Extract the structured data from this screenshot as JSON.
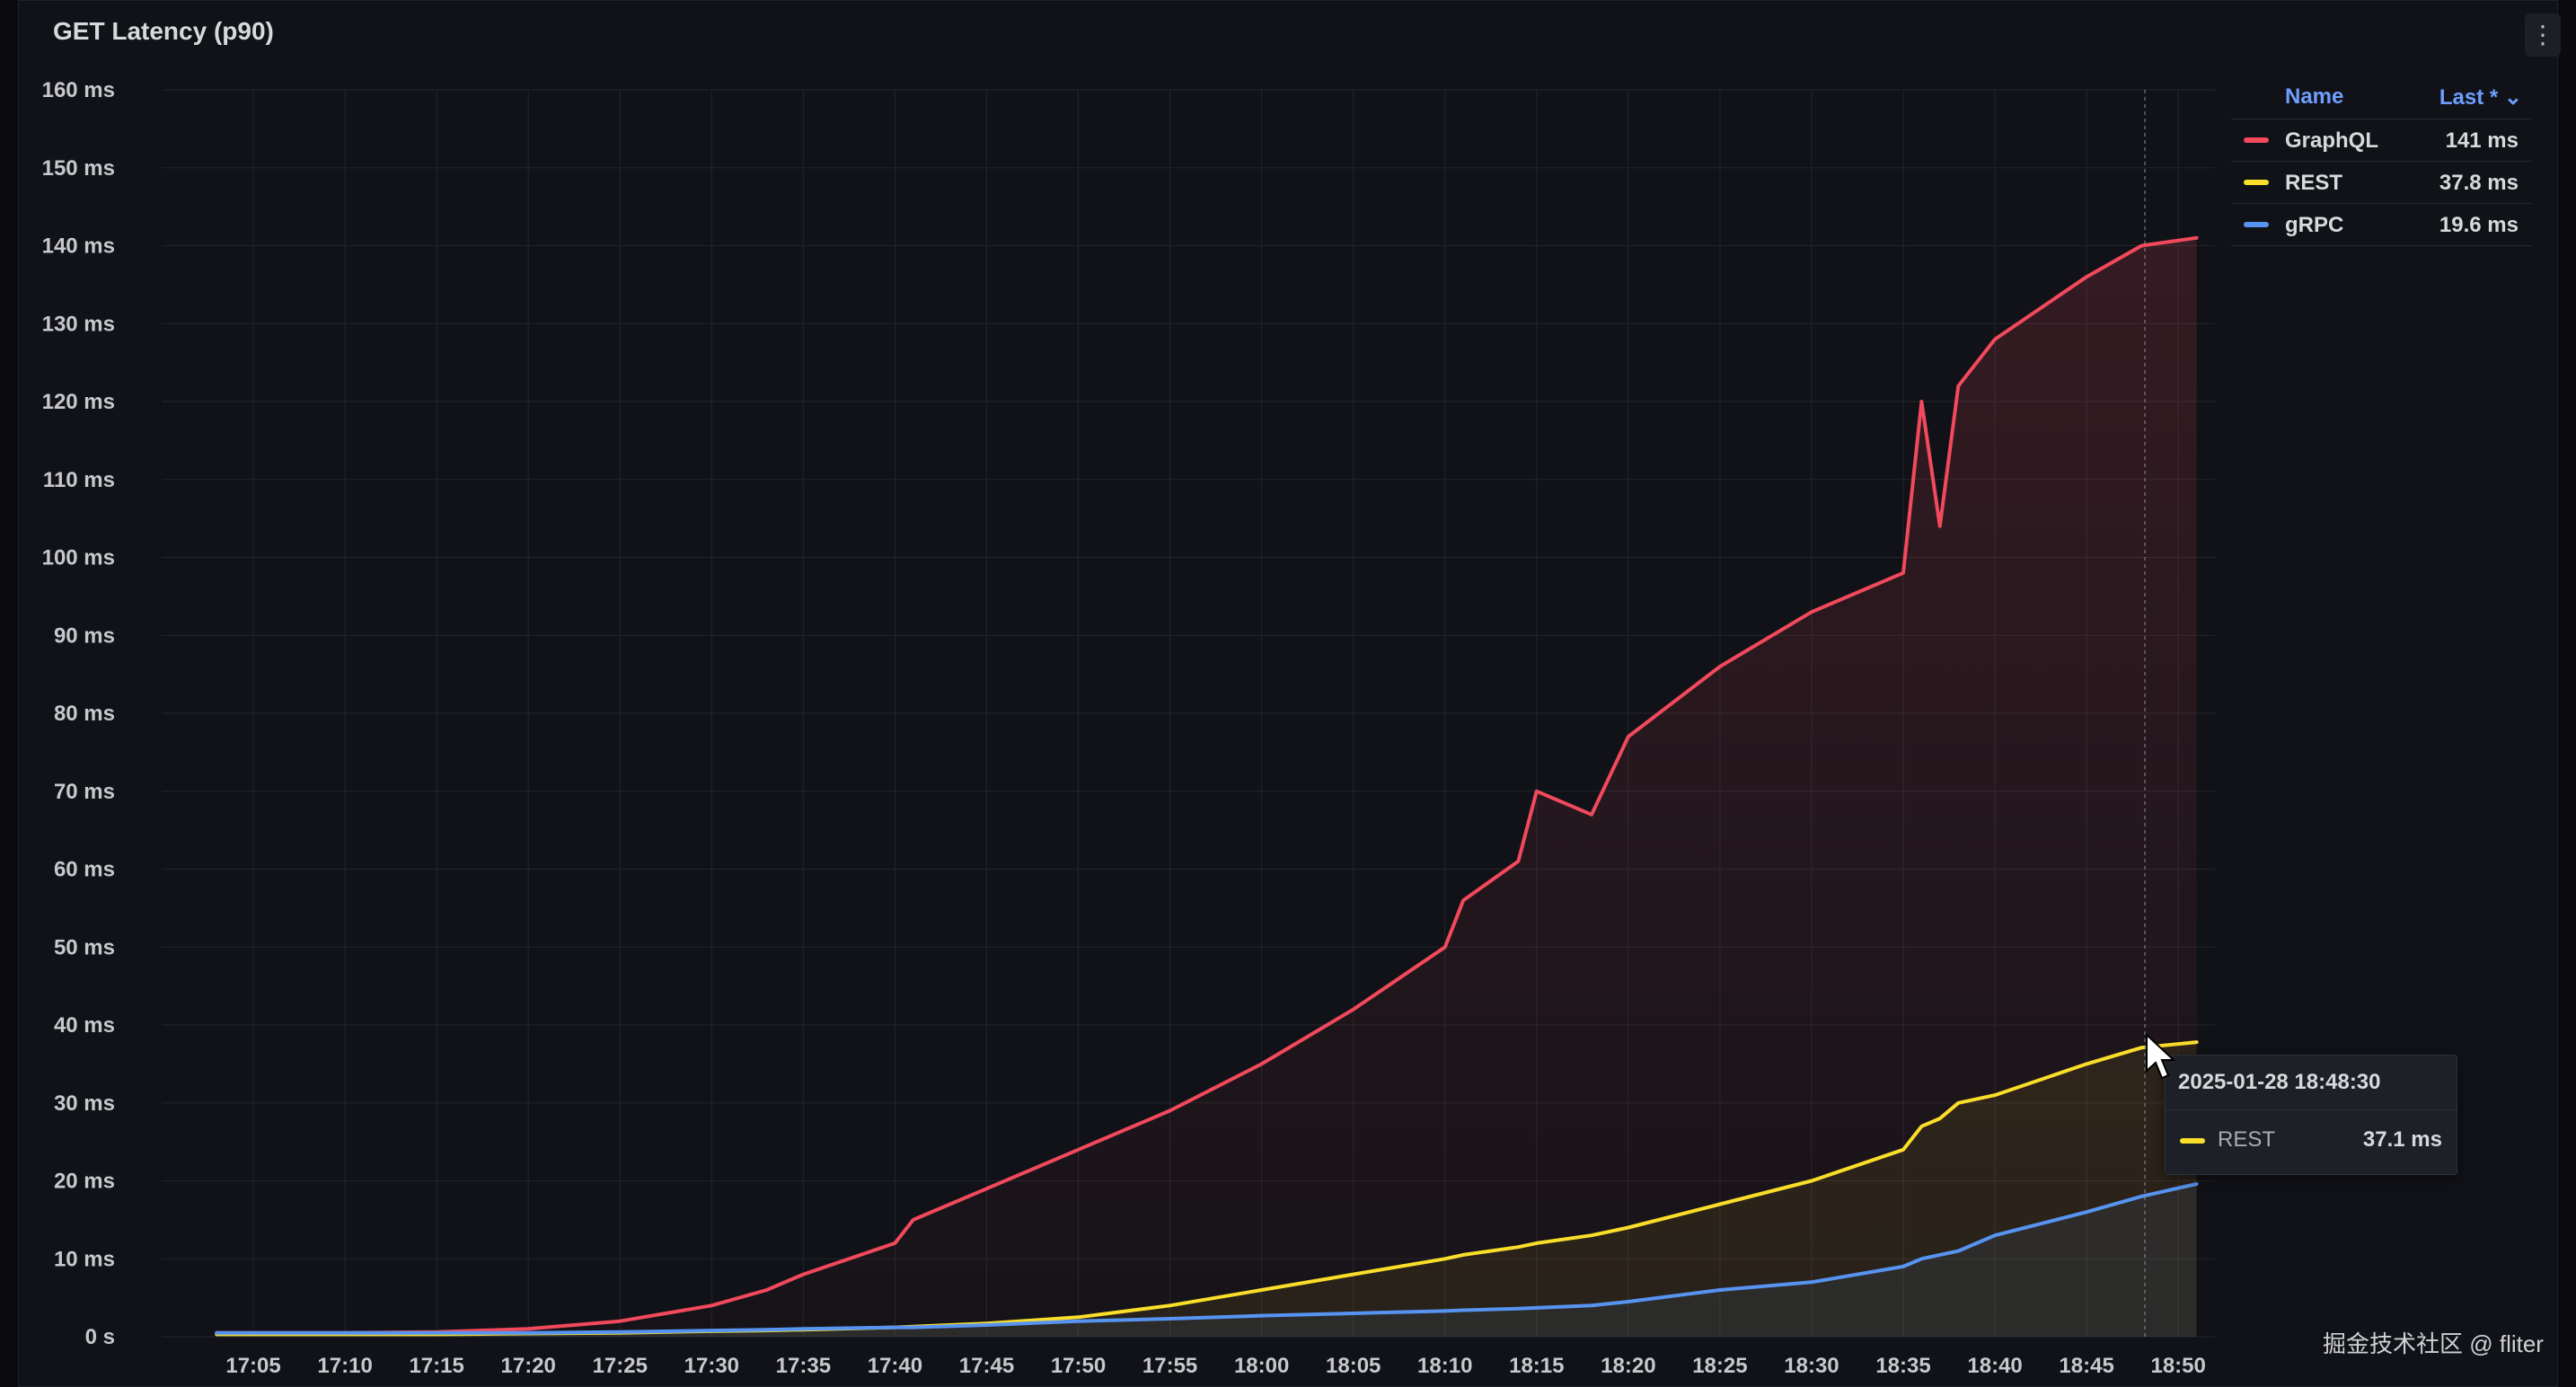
{
  "panel": {
    "title": "GET Latency (p90)",
    "menu_icon": "kebab-menu-icon",
    "menu_glyph": "⋮"
  },
  "legend": {
    "name_header": "Name",
    "last_header": "Last *",
    "sort_icon": "chevron-down-icon",
    "sort_glyph": "⌄",
    "items": [
      {
        "label": "GraphQL",
        "last": "141 ms",
        "color": "#f2495c"
      },
      {
        "label": "REST",
        "last": "37.8 ms",
        "color": "#fade2a"
      },
      {
        "label": "gRPC",
        "last": "19.6 ms",
        "color": "#5794f2"
      }
    ]
  },
  "tooltip": {
    "time": "2025-01-28 18:48:30",
    "series": "REST",
    "value": "37.1 ms",
    "color": "#fade2a"
  },
  "watermark": "掘金技术社区 @ fliter",
  "chart_data": {
    "type": "line",
    "title": "GET Latency (p90)",
    "xlabel": "",
    "ylabel": "",
    "ylim": [
      0,
      160
    ],
    "y_unit": "ms",
    "yticks": [
      "0 s",
      "10 ms",
      "20 ms",
      "30 ms",
      "40 ms",
      "50 ms",
      "60 ms",
      "70 ms",
      "80 ms",
      "90 ms",
      "100 ms",
      "110 ms",
      "120 ms",
      "130 ms",
      "140 ms",
      "150 ms",
      "160 ms"
    ],
    "xticks": [
      "17:05",
      "17:10",
      "17:15",
      "17:20",
      "17:25",
      "17:30",
      "17:35",
      "17:40",
      "17:45",
      "17:50",
      "17:55",
      "18:00",
      "18:05",
      "18:10",
      "18:15",
      "18:20",
      "18:25",
      "18:30",
      "18:35",
      "18:40",
      "18:45",
      "18:50"
    ],
    "x": [
      "17:03",
      "17:05",
      "17:10",
      "17:15",
      "17:20",
      "17:25",
      "17:30",
      "17:33",
      "17:35",
      "17:40",
      "17:41",
      "17:45",
      "17:50",
      "17:55",
      "18:00",
      "18:05",
      "18:10",
      "18:11",
      "18:14",
      "18:15",
      "18:18",
      "18:20",
      "18:25",
      "18:30",
      "18:35",
      "18:36",
      "18:37",
      "18:38",
      "18:40",
      "18:45",
      "18:48",
      "18:51"
    ],
    "series": [
      {
        "name": "GraphQL",
        "color": "#f2495c",
        "values": [
          0.5,
          0.5,
          0.5,
          0.6,
          1,
          2,
          4,
          6,
          8,
          12,
          15,
          19,
          24,
          29,
          35,
          42,
          50,
          56,
          61,
          70,
          67,
          77,
          86,
          93,
          98,
          120,
          104,
          122,
          128,
          136,
          140,
          141
        ]
      },
      {
        "name": "REST",
        "color": "#fade2a",
        "values": [
          0.3,
          0.3,
          0.3,
          0.3,
          0.4,
          0.5,
          0.7,
          0.8,
          0.9,
          1.2,
          1.3,
          1.7,
          2.5,
          4,
          6,
          8,
          10,
          10.5,
          11.5,
          12,
          13,
          14,
          17,
          20,
          24,
          27,
          28,
          30,
          31,
          35,
          37.1,
          37.8
        ]
      },
      {
        "name": "gRPC",
        "color": "#5794f2",
        "values": [
          0.5,
          0.5,
          0.5,
          0.5,
          0.5,
          0.6,
          0.8,
          0.9,
          1,
          1.2,
          1.2,
          1.5,
          2,
          2.3,
          2.7,
          3,
          3.3,
          3.4,
          3.6,
          3.7,
          4,
          4.5,
          6,
          7,
          9,
          10,
          10.5,
          11,
          13,
          16,
          18,
          19.6
        ]
      }
    ],
    "grid": true,
    "legend_position": "right"
  }
}
